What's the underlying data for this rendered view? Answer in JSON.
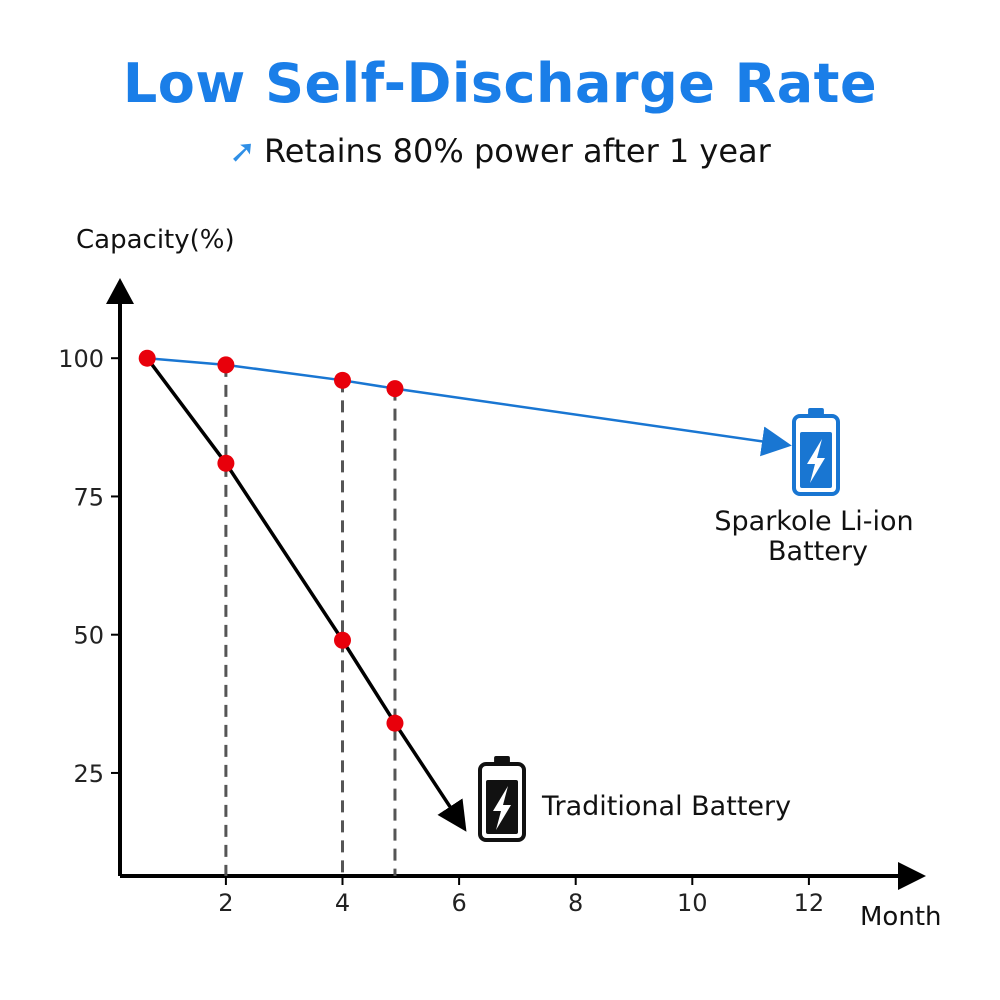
{
  "header": {
    "title": "Low Self-Discharge Rate",
    "subtitle": "Retains 80% power after 1 year",
    "subtitle_icon": "arrow-up-right-icon"
  },
  "colors": {
    "title": "#1a7ee8",
    "liion": "#1976d2",
    "traditional": "#000000",
    "points": "#e8000b",
    "guides": "#555555"
  },
  "chart_data": {
    "type": "line",
    "title": "Low Self-Discharge Rate",
    "subtitle": "Retains 80% power after 1 year",
    "xlabel": "Month",
    "ylabel": "Capacity(%)",
    "xlim": [
      0,
      14
    ],
    "ylim": [
      10,
      115
    ],
    "xticks": [
      2,
      4,
      6,
      8,
      10,
      12
    ],
    "yticks": [
      25,
      50,
      75,
      100
    ],
    "grid": false,
    "series": [
      {
        "name": "Sparkole Li-ion Battery",
        "label_lines": [
          "Sparkole Li-ion",
          "Battery"
        ],
        "points": [
          [
            0.65,
            100
          ],
          [
            2,
            98.8
          ],
          [
            4,
            96
          ],
          [
            4.9,
            94.5
          ]
        ],
        "trend_end": [
          11.3,
          84.8
        ],
        "icon": "battery-blue-icon"
      },
      {
        "name": "Traditional Battery",
        "label_lines": [
          "Traditional Battery"
        ],
        "points": [
          [
            0.65,
            100
          ],
          [
            2,
            81
          ],
          [
            4,
            49
          ],
          [
            4.9,
            34
          ]
        ],
        "trend_end": [
          5.9,
          18
        ],
        "icon": "battery-black-icon"
      }
    ],
    "guide_lines_x": [
      2,
      4,
      4.9
    ]
  }
}
